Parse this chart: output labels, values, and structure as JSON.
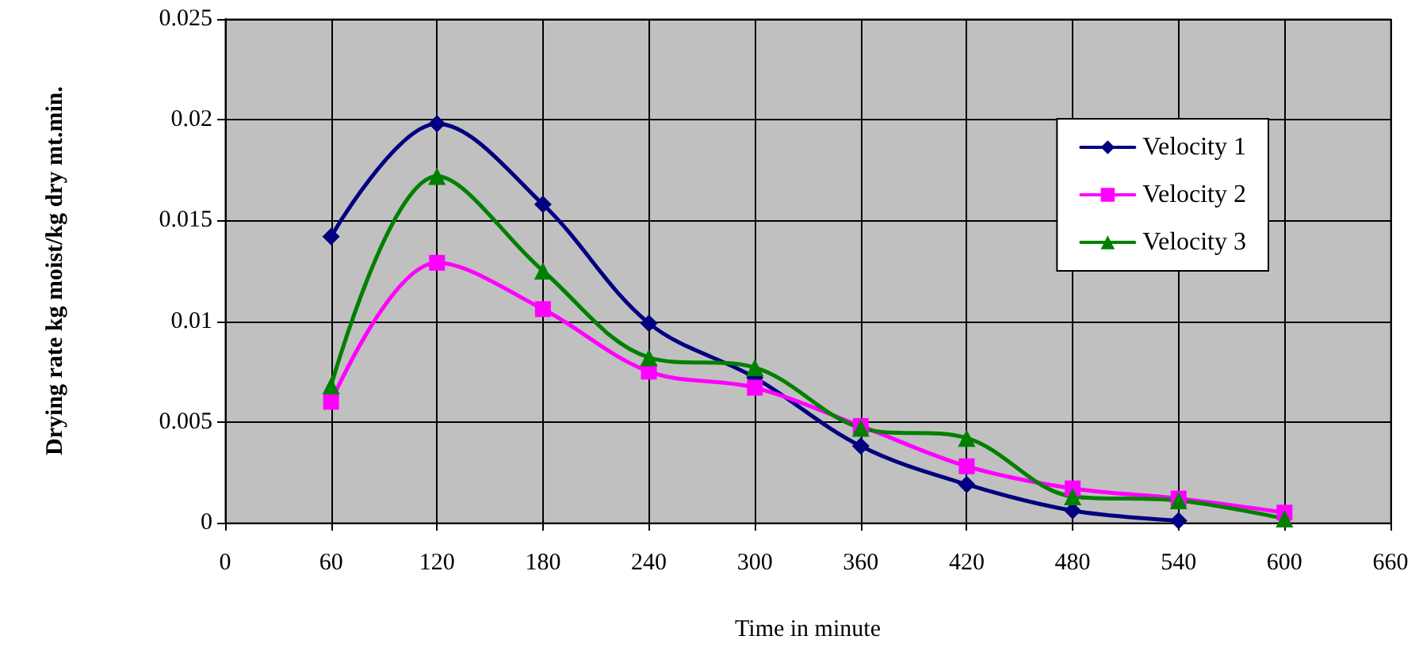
{
  "chart_data": {
    "type": "line",
    "xlabel": "Time in minute",
    "ylabel": "Drying rate kg moist/kg dry mt.min.",
    "xlim": [
      0,
      660
    ],
    "xticks": [
      0,
      60,
      120,
      180,
      240,
      300,
      360,
      420,
      480,
      540,
      600,
      660
    ],
    "ylim": [
      0,
      0.025
    ],
    "yticks": [
      0,
      0.005,
      0.01,
      0.015,
      0.02,
      0.025
    ],
    "grid": true,
    "legend": "top right",
    "line_style": "solid",
    "x": [
      60,
      120,
      180,
      240,
      300,
      360,
      420,
      480,
      540,
      600
    ],
    "series": [
      {
        "name": "Velocity 1",
        "color": "#000080",
        "marker": "diamond",
        "values": [
          0.0142,
          0.0198,
          0.0158,
          0.0099,
          0.0072,
          0.0038,
          0.0019,
          0.0006,
          0.0001,
          null
        ]
      },
      {
        "name": "Velocity 2",
        "color": "#ff00ff",
        "marker": "square",
        "values": [
          0.006,
          0.0129,
          0.0106,
          0.0075,
          0.0067,
          0.0048,
          0.0028,
          0.0017,
          0.0012,
          0.0005
        ]
      },
      {
        "name": "Velocity 3",
        "color": "#008000",
        "marker": "triangle",
        "values": [
          0.0068,
          0.0172,
          0.0125,
          0.0082,
          0.0077,
          0.0047,
          0.0042,
          0.0013,
          0.0011,
          0.0002
        ]
      }
    ]
  }
}
